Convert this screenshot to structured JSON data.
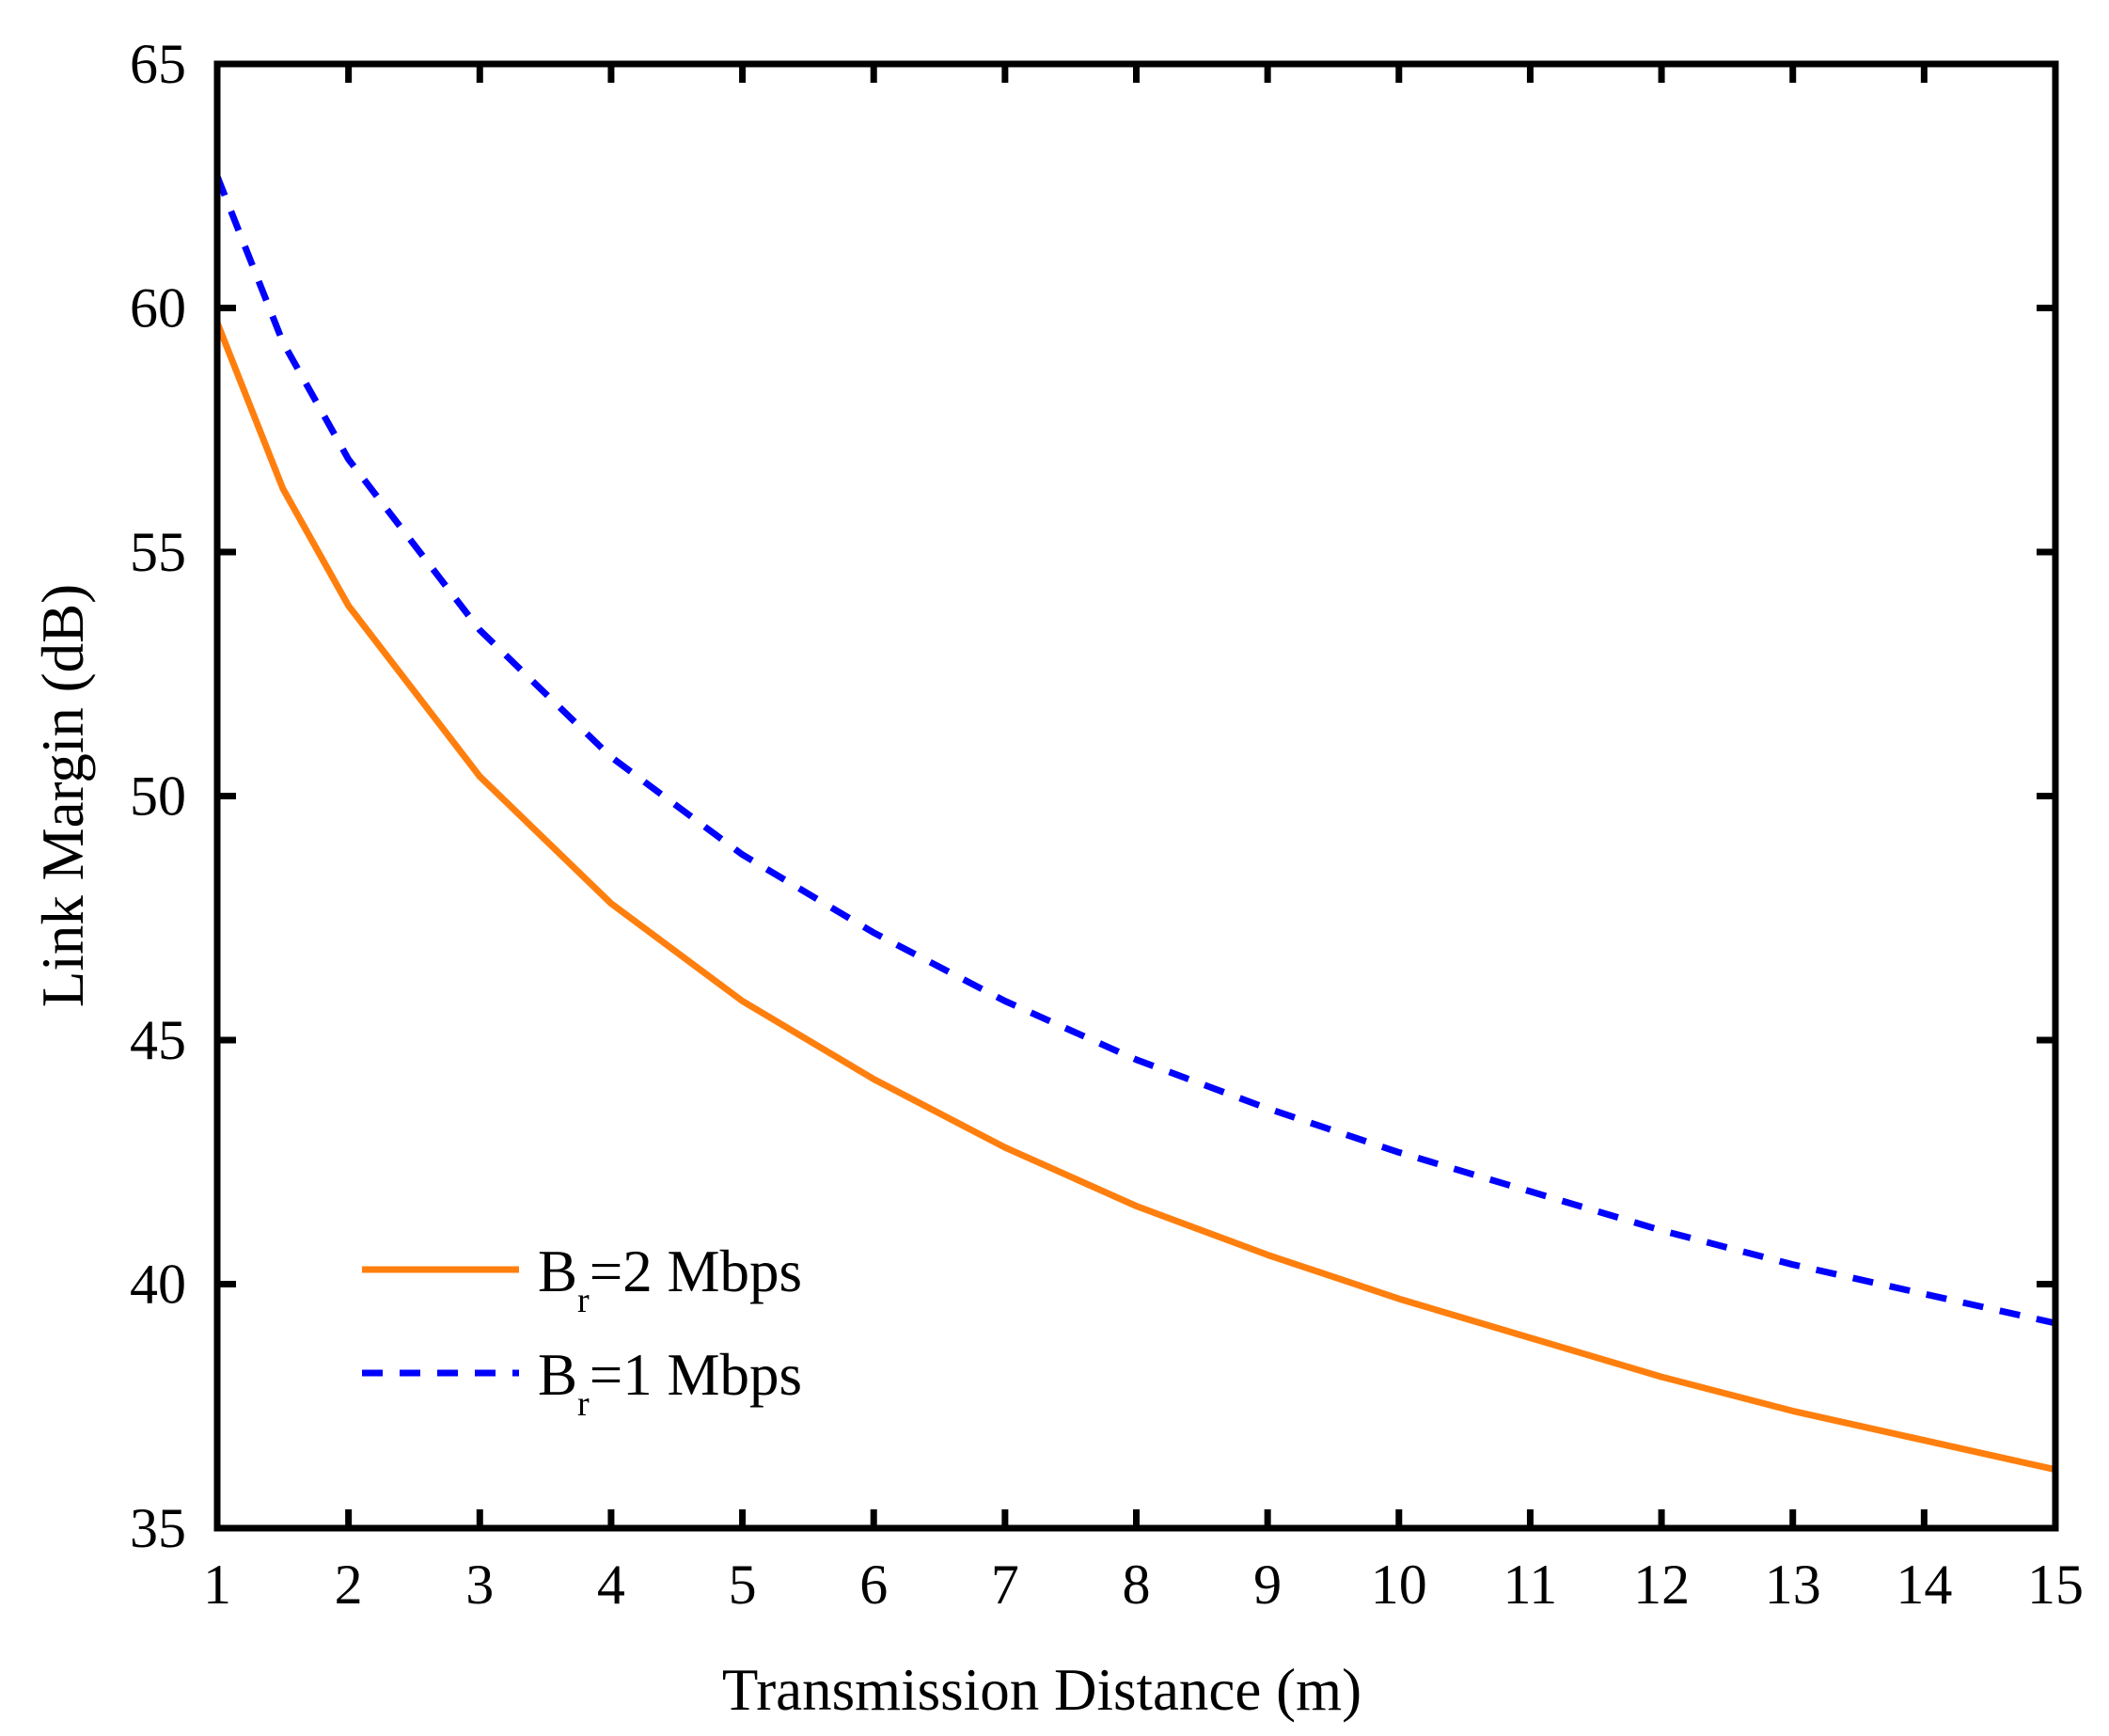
{
  "chart_data": {
    "type": "line",
    "title": "",
    "xlabel": "Transmission Distance (m)",
    "ylabel": "Link Margin (dB)",
    "xlim": [
      1,
      15
    ],
    "ylim": [
      35,
      65
    ],
    "xticks": [
      1,
      2,
      3,
      4,
      5,
      6,
      7,
      8,
      9,
      10,
      11,
      12,
      13,
      14,
      15
    ],
    "yticks": [
      35,
      40,
      45,
      50,
      55,
      60,
      65
    ],
    "grid": false,
    "legend_position": "bottom-left",
    "series": [
      {
        "name": "Br=2 Mbps",
        "legend_base": "B",
        "legend_sub": "r",
        "legend_rest": "=2 Mbps",
        "color": "#ff7f0e",
        "line_style": "solid",
        "x": [
          1,
          1.5,
          2,
          3,
          4,
          5,
          6,
          7,
          8,
          9,
          10,
          11,
          12,
          13,
          14,
          15
        ],
        "values": [
          59.7,
          56.3,
          53.9,
          50.4,
          47.8,
          45.8,
          44.2,
          42.8,
          41.6,
          40.6,
          39.7,
          38.9,
          38.1,
          37.4,
          36.8,
          36.2
        ]
      },
      {
        "name": "Br=1 Mbps",
        "legend_base": "B",
        "legend_sub": "r",
        "legend_rest": "=1 Mbps",
        "color": "#0000ff",
        "line_style": "dashed",
        "x": [
          1,
          1.5,
          2,
          3,
          4,
          5,
          6,
          7,
          8,
          9,
          10,
          11,
          12,
          13,
          14,
          15
        ],
        "values": [
          62.7,
          59.3,
          56.9,
          53.4,
          50.8,
          48.8,
          47.2,
          45.8,
          44.6,
          43.6,
          42.7,
          41.9,
          41.1,
          40.4,
          39.8,
          39.2
        ]
      }
    ]
  }
}
